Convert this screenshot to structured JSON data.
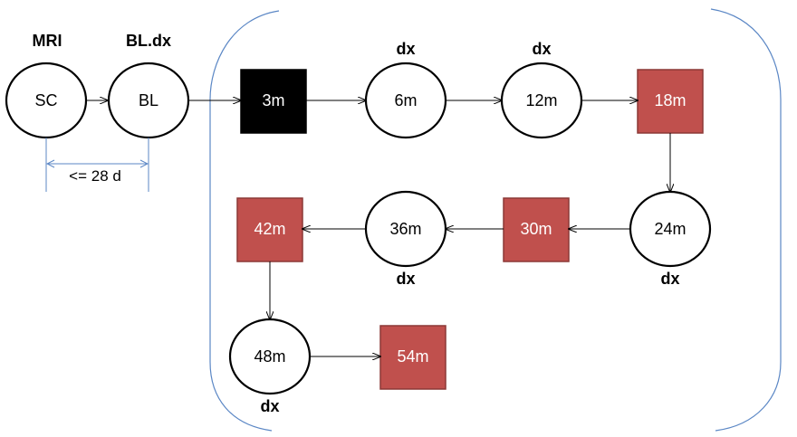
{
  "colors": {
    "circle_fill": "#ffffff",
    "circle_stroke": "#000000",
    "black_box": "#000000",
    "red_box": "#c0504d",
    "red_box_stroke": "#8c3836",
    "frame_stroke": "#5b87c5",
    "arrow": "#000000",
    "text_dark": "#000000",
    "text_light": "#ffffff"
  },
  "pre": {
    "sc": {
      "label": "SC",
      "header": "MRI"
    },
    "bl": {
      "label": "BL",
      "header": "BL.dx"
    },
    "window": "<= 28 d"
  },
  "visits": [
    {
      "id": "m3",
      "label": "3m",
      "shape": "box-black"
    },
    {
      "id": "m6",
      "label": "6m",
      "shape": "circle",
      "dx": "dx",
      "dx_pos": "above"
    },
    {
      "id": "m12",
      "label": "12m",
      "shape": "circle",
      "dx": "dx",
      "dx_pos": "above"
    },
    {
      "id": "m18",
      "label": "18m",
      "shape": "box-red"
    },
    {
      "id": "m24",
      "label": "24m",
      "shape": "circle",
      "dx": "dx",
      "dx_pos": "below"
    },
    {
      "id": "m30",
      "label": "30m",
      "shape": "box-red"
    },
    {
      "id": "m36",
      "label": "36m",
      "shape": "circle",
      "dx": "dx",
      "dx_pos": "below"
    },
    {
      "id": "m42",
      "label": "42m",
      "shape": "box-red"
    },
    {
      "id": "m48",
      "label": "48m",
      "shape": "circle",
      "dx": "dx",
      "dx_pos": "below"
    },
    {
      "id": "m54",
      "label": "54m",
      "shape": "box-red"
    }
  ]
}
